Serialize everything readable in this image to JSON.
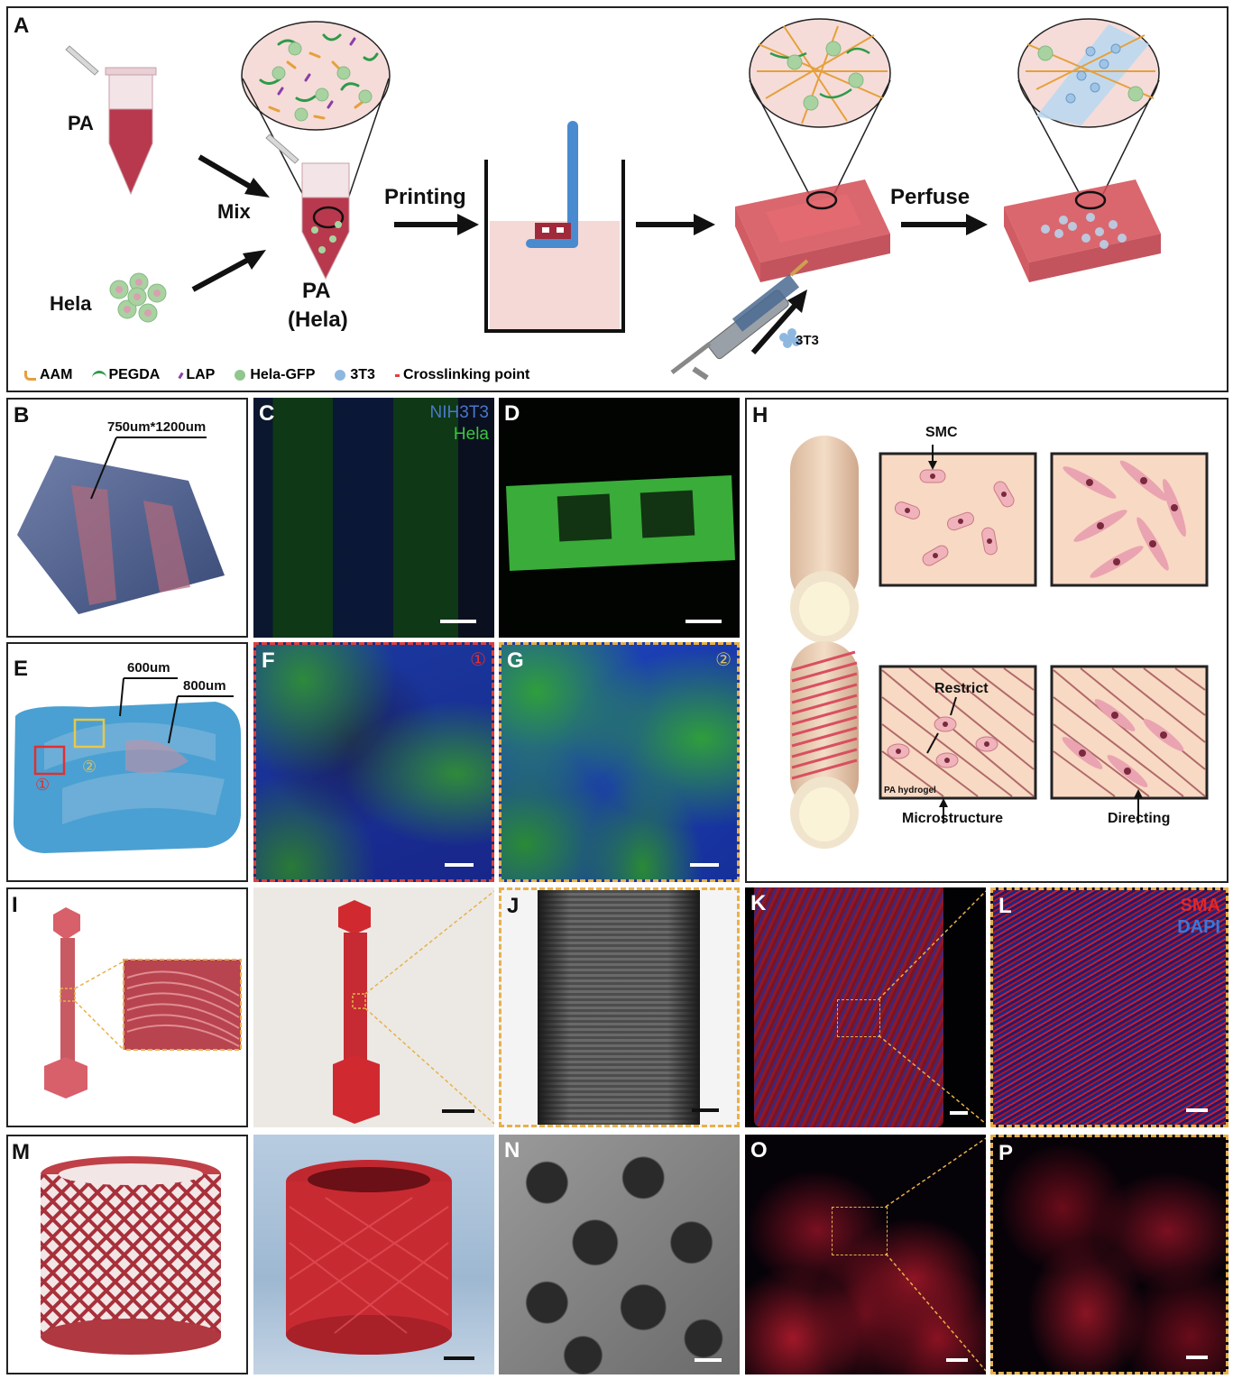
{
  "panels": {
    "A": "A",
    "B": "B",
    "C": "C",
    "D": "D",
    "E": "E",
    "F": "F",
    "G": "G",
    "H": "H",
    "I": "I",
    "J": "J",
    "K": "K",
    "L": "L",
    "M": "M",
    "N": "N",
    "O": "O",
    "P": "P"
  },
  "panelA": {
    "pa": "PA",
    "hela": "Hela",
    "mix": "Mix",
    "pa_hela_line1": "PA",
    "pa_hela_line2": "(Hela)",
    "printing": "Printing",
    "perfuse": "Perfuse",
    "t3t3": "3T3",
    "legend": [
      {
        "label": "AAM",
        "color": "#e6a03c"
      },
      {
        "label": "PEGDA",
        "color": "#2e9a4a"
      },
      {
        "label": "LAP",
        "color": "#8a3ea8"
      },
      {
        "label": "Hela-GFP",
        "color": "#8fc78f"
      },
      {
        "label": "3T3",
        "color": "#8fb8e0"
      },
      {
        "label": "Crosslinking point",
        "color": "#e04040"
      }
    ]
  },
  "panelB": {
    "dims": "750um*1200um"
  },
  "panelC": {
    "stain1": "NIH3T3",
    "stain1_color": "#4a78c8",
    "stain2": "Hela",
    "stain2_color": "#3cc63c"
  },
  "panelE": {
    "dim1": "600um",
    "dim2": "800um",
    "marker1": "①",
    "marker2": "②"
  },
  "panelF": {
    "marker": "①"
  },
  "panelG": {
    "marker": "②"
  },
  "panelH": {
    "smc": "SMC",
    "restrict": "Restrict",
    "pa_hydrogel": "PA hydrogel",
    "microstructure": "Microstructure",
    "directing": "Directing"
  },
  "panelL": {
    "stain1": "SMA",
    "stain1_color": "#e02828",
    "stain2": "DAPI",
    "stain2_color": "#3a78d8"
  }
}
